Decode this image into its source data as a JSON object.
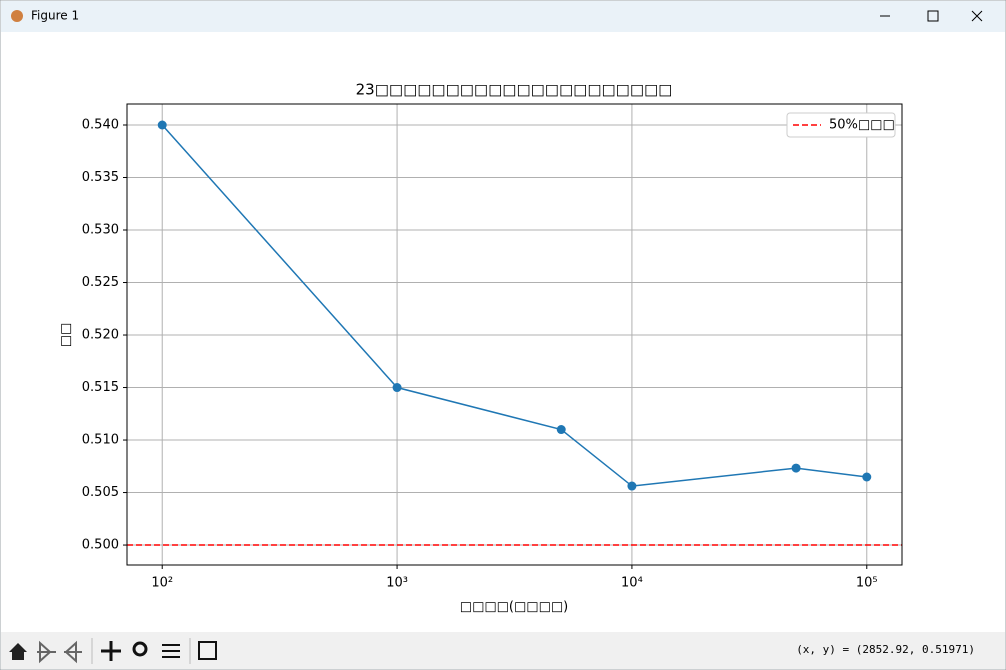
{
  "window": {
    "title": "Figure 1",
    "status": "(x, y) = (2852.92, 0.51971)"
  },
  "chart_data": {
    "type": "line",
    "title": "23□□□□□□□□□□□□□□□□□□□□□",
    "xlabel": "□□□□(□□□□)",
    "ylabel": "□□",
    "x": [
      100,
      1000,
      5000,
      10000,
      50000,
      100000
    ],
    "series": [
      {
        "color": "#1f77b4",
        "values": [
          0.54,
          0.515,
          0.511,
          0.50562,
          0.50733,
          0.50648
        ]
      }
    ],
    "reference_lines": [
      {
        "name": "50%□□□",
        "value": 0.5,
        "color": "#ff0000",
        "style": "dashed"
      }
    ],
    "xscale": "log",
    "xlim": [
      70.8,
      141254
    ],
    "xticks": [
      {
        "value": 100,
        "label": "10²"
      },
      {
        "value": 1000,
        "label": "10³"
      },
      {
        "value": 10000,
        "label": "10⁴"
      },
      {
        "value": 100000,
        "label": "10⁵"
      }
    ],
    "ylim": [
      0.4981,
      0.542
    ],
    "yticks": [
      {
        "value": 0.5,
        "label": "0.500"
      },
      {
        "value": 0.505,
        "label": "0.505"
      },
      {
        "value": 0.51,
        "label": "0.510"
      },
      {
        "value": 0.515,
        "label": "0.515"
      },
      {
        "value": 0.52,
        "label": "0.520"
      },
      {
        "value": 0.525,
        "label": "0.525"
      },
      {
        "value": 0.53,
        "label": "0.530"
      },
      {
        "value": 0.535,
        "label": "0.535"
      },
      {
        "value": 0.54,
        "label": "0.540"
      }
    ],
    "grid": true,
    "legend": "upper right"
  }
}
